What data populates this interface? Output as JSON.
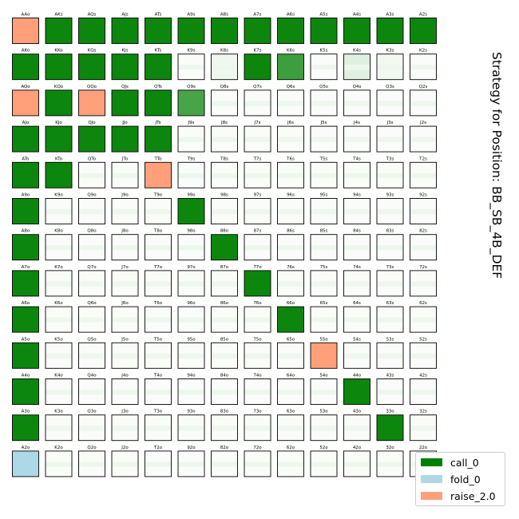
{
  "chart_data": {
    "type": "heatmap",
    "title": "Strategy for Position: BB_SB_4B_DEF",
    "legend": [
      "call_0",
      "fold_0",
      "raise_2.0"
    ],
    "legend_placement": "bottom-right",
    "colors": {
      "call_0": "#008000",
      "fold_0": "#add8e6",
      "raise_2.0": "#ffa07a"
    },
    "rows": [
      [
        {
          "hand": "AAo",
          "raise": 1
        },
        {
          "hand": "AKs",
          "call": 0.95
        },
        {
          "hand": "AQs",
          "call": 0.95
        },
        {
          "hand": "AJs",
          "call": 0.95
        },
        {
          "hand": "ATs",
          "call": 0.95
        },
        {
          "hand": "A9s",
          "call": 0.95
        },
        {
          "hand": "A8s",
          "call": 0.95
        },
        {
          "hand": "A7s",
          "call": 0.95
        },
        {
          "hand": "A6s",
          "call": 0.95
        },
        {
          "hand": "A5s",
          "call": 0.95
        },
        {
          "hand": "A4s",
          "call": 0.95
        },
        {
          "hand": "A3s",
          "call": 0.95
        },
        {
          "hand": "A2s",
          "call": 0.95
        }
      ],
      [
        {
          "hand": "AKo",
          "call": 0.95
        },
        {
          "hand": "KKo",
          "call": 0.95
        },
        {
          "hand": "KQs",
          "call": 0.95
        },
        {
          "hand": "KJs",
          "call": 0.95
        },
        {
          "hand": "KTs",
          "call": 0.95
        },
        {
          "hand": "K9s",
          "call": 0.02
        },
        {
          "hand": "K8s",
          "call": 0.06
        },
        {
          "hand": "K7s",
          "call": 0.95
        },
        {
          "hand": "K6s",
          "call": 0.76
        },
        {
          "hand": "K5s",
          "call": 0.02
        },
        {
          "hand": "K4s",
          "call": 0.12
        },
        {
          "hand": "K3s",
          "call": 0.05
        },
        {
          "hand": "K2s",
          "call": 0.02
        }
      ],
      [
        {
          "hand": "AQo",
          "raise": 1
        },
        {
          "hand": "KQo",
          "call": 0.95
        },
        {
          "hand": "QQo",
          "raise": 1
        },
        {
          "hand": "QJs",
          "call": 0.95
        },
        {
          "hand": "QTs",
          "call": 0.95
        },
        {
          "hand": "Q9s",
          "call": 0.72
        },
        {
          "hand": "Q8s",
          "call": 0.02
        },
        {
          "hand": "Q7s",
          "call": 0.02
        },
        {
          "hand": "Q6s",
          "call": 0.02
        },
        {
          "hand": "Q5s",
          "call": 0.02
        },
        {
          "hand": "Q4s",
          "call": 0.02
        },
        {
          "hand": "Q3s",
          "call": 0.02
        },
        {
          "hand": "Q2s",
          "call": 0.02
        }
      ],
      [
        {
          "hand": "AJo",
          "call": 0.95
        },
        {
          "hand": "KJo",
          "call": 0.95
        },
        {
          "hand": "QJo",
          "call": 0.95
        },
        {
          "hand": "JJo",
          "call": 0.95
        },
        {
          "hand": "JTs",
          "call": 0.95
        },
        {
          "hand": "J9s",
          "call": 0.02
        },
        {
          "hand": "J8s",
          "call": 0.02
        },
        {
          "hand": "J7s",
          "call": 0.02
        },
        {
          "hand": "J6s",
          "call": 0.02
        },
        {
          "hand": "J5s",
          "call": 0.02
        },
        {
          "hand": "J4s",
          "call": 0.02
        },
        {
          "hand": "J3s",
          "call": 0.02
        },
        {
          "hand": "J2s",
          "call": 0.02
        }
      ],
      [
        {
          "hand": "ATo",
          "call": 0.95
        },
        {
          "hand": "KTo",
          "call": 0.95
        },
        {
          "hand": "QTo",
          "call": 0.02
        },
        {
          "hand": "JTo",
          "call": 0.02
        },
        {
          "hand": "TTo",
          "raise": 1
        },
        {
          "hand": "T9s",
          "call": 0.02
        },
        {
          "hand": "T8s",
          "call": 0.02
        },
        {
          "hand": "T7s",
          "call": 0.02
        },
        {
          "hand": "T6s",
          "call": 0.02
        },
        {
          "hand": "T5s",
          "call": 0.02
        },
        {
          "hand": "T4s",
          "call": 0.02
        },
        {
          "hand": "T3s",
          "call": 0.02
        },
        {
          "hand": "T2s",
          "call": 0.02
        }
      ],
      [
        {
          "hand": "A9o",
          "call": 0.95
        },
        {
          "hand": "K9o",
          "call": 0.02
        },
        {
          "hand": "Q9o",
          "call": 0.02
        },
        {
          "hand": "J9o",
          "call": 0.02
        },
        {
          "hand": "T9o",
          "call": 0.02
        },
        {
          "hand": "99o",
          "call": 0.95
        },
        {
          "hand": "98s",
          "call": 0.02
        },
        {
          "hand": "97s",
          "call": 0.02
        },
        {
          "hand": "96s",
          "call": 0.02
        },
        {
          "hand": "95s",
          "call": 0.02
        },
        {
          "hand": "94s",
          "call": 0.02
        },
        {
          "hand": "93s",
          "call": 0.02
        },
        {
          "hand": "92s",
          "call": 0.02
        }
      ],
      [
        {
          "hand": "A8o",
          "call": 0.95
        },
        {
          "hand": "K8o",
          "call": 0.02
        },
        {
          "hand": "Q8o",
          "call": 0.02
        },
        {
          "hand": "J8o",
          "call": 0.02
        },
        {
          "hand": "T8o",
          "call": 0.02
        },
        {
          "hand": "98o",
          "call": 0.02
        },
        {
          "hand": "88o",
          "call": 0.95
        },
        {
          "hand": "87s",
          "call": 0.02
        },
        {
          "hand": "86s",
          "call": 0.02
        },
        {
          "hand": "85s",
          "call": 0.02
        },
        {
          "hand": "84s",
          "call": 0.02
        },
        {
          "hand": "83s",
          "call": 0.02
        },
        {
          "hand": "82s",
          "call": 0.02
        }
      ],
      [
        {
          "hand": "A7o",
          "call": 0.95
        },
        {
          "hand": "K7o",
          "call": 0.02
        },
        {
          "hand": "Q7o",
          "call": 0.02
        },
        {
          "hand": "J7o",
          "call": 0.02
        },
        {
          "hand": "T7o",
          "call": 0.02
        },
        {
          "hand": "97o",
          "call": 0.02
        },
        {
          "hand": "87o",
          "call": 0.02
        },
        {
          "hand": "77o",
          "call": 0.95
        },
        {
          "hand": "76s",
          "call": 0.02
        },
        {
          "hand": "75s",
          "call": 0.02
        },
        {
          "hand": "74s",
          "call": 0.02
        },
        {
          "hand": "73s",
          "call": 0.02
        },
        {
          "hand": "72s",
          "call": 0.02
        }
      ],
      [
        {
          "hand": "A6o",
          "call": 0.95
        },
        {
          "hand": "K6o",
          "call": 0.02
        },
        {
          "hand": "Q6o",
          "call": 0.02
        },
        {
          "hand": "J6o",
          "call": 0.02
        },
        {
          "hand": "T6o",
          "call": 0.02
        },
        {
          "hand": "96o",
          "call": 0.02
        },
        {
          "hand": "86o",
          "call": 0.02
        },
        {
          "hand": "76o",
          "call": 0.02
        },
        {
          "hand": "66o",
          "call": 0.95
        },
        {
          "hand": "65s",
          "call": 0.02
        },
        {
          "hand": "64s",
          "call": 0.02
        },
        {
          "hand": "63s",
          "call": 0.02
        },
        {
          "hand": "62s",
          "call": 0.02
        }
      ],
      [
        {
          "hand": "A5o",
          "call": 0.95
        },
        {
          "hand": "K5o",
          "call": 0.02
        },
        {
          "hand": "Q5o",
          "call": 0.02
        },
        {
          "hand": "J5o",
          "call": 0.02
        },
        {
          "hand": "T5o",
          "call": 0.02
        },
        {
          "hand": "95o",
          "call": 0.02
        },
        {
          "hand": "85o",
          "call": 0.02
        },
        {
          "hand": "75o",
          "call": 0.02
        },
        {
          "hand": "65o",
          "call": 0.02
        },
        {
          "hand": "55o",
          "raise": 1
        },
        {
          "hand": "54s",
          "call": 0.02
        },
        {
          "hand": "53s",
          "call": 0.02
        },
        {
          "hand": "52s",
          "call": 0.02
        }
      ],
      [
        {
          "hand": "A4o",
          "call": 0.95
        },
        {
          "hand": "K4o",
          "call": 0.02
        },
        {
          "hand": "Q4o",
          "call": 0.02
        },
        {
          "hand": "J4o",
          "call": 0.02
        },
        {
          "hand": "T4o",
          "call": 0.02
        },
        {
          "hand": "94o",
          "call": 0.02
        },
        {
          "hand": "84o",
          "call": 0.02
        },
        {
          "hand": "74o",
          "call": 0.02
        },
        {
          "hand": "64o",
          "call": 0.02
        },
        {
          "hand": "54o",
          "call": 0.02
        },
        {
          "hand": "44o",
          "call": 0.95
        },
        {
          "hand": "43s",
          "call": 0.02
        },
        {
          "hand": "42s",
          "call": 0.02
        }
      ],
      [
        {
          "hand": "A3o",
          "call": 0.95
        },
        {
          "hand": "K3o",
          "call": 0.02
        },
        {
          "hand": "Q3o",
          "call": 0.02
        },
        {
          "hand": "J3o",
          "call": 0.02
        },
        {
          "hand": "T3o",
          "call": 0.02
        },
        {
          "hand": "93o",
          "call": 0.02
        },
        {
          "hand": "83o",
          "call": 0.02
        },
        {
          "hand": "73o",
          "call": 0.02
        },
        {
          "hand": "63o",
          "call": 0.02
        },
        {
          "hand": "53o",
          "call": 0.02
        },
        {
          "hand": "43o",
          "call": 0.02
        },
        {
          "hand": "33o",
          "call": 0.95
        },
        {
          "hand": "32s",
          "call": 0.02
        }
      ],
      [
        {
          "hand": "A2o",
          "fold": 1
        },
        {
          "hand": "K2o",
          "call": 0.02
        },
        {
          "hand": "Q2o",
          "call": 0.02
        },
        {
          "hand": "J2o",
          "call": 0.02
        },
        {
          "hand": "T2o",
          "call": 0.02
        },
        {
          "hand": "92o",
          "call": 0.02
        },
        {
          "hand": "82o",
          "call": 0.02
        },
        {
          "hand": "72o",
          "call": 0.02
        },
        {
          "hand": "62o",
          "call": 0.02
        },
        {
          "hand": "52o",
          "call": 0.02
        },
        {
          "hand": "42o",
          "call": 0.02
        },
        {
          "hand": "32o",
          "call": 0.02
        },
        {
          "hand": "22o",
          "call": 0.02
        }
      ]
    ]
  }
}
